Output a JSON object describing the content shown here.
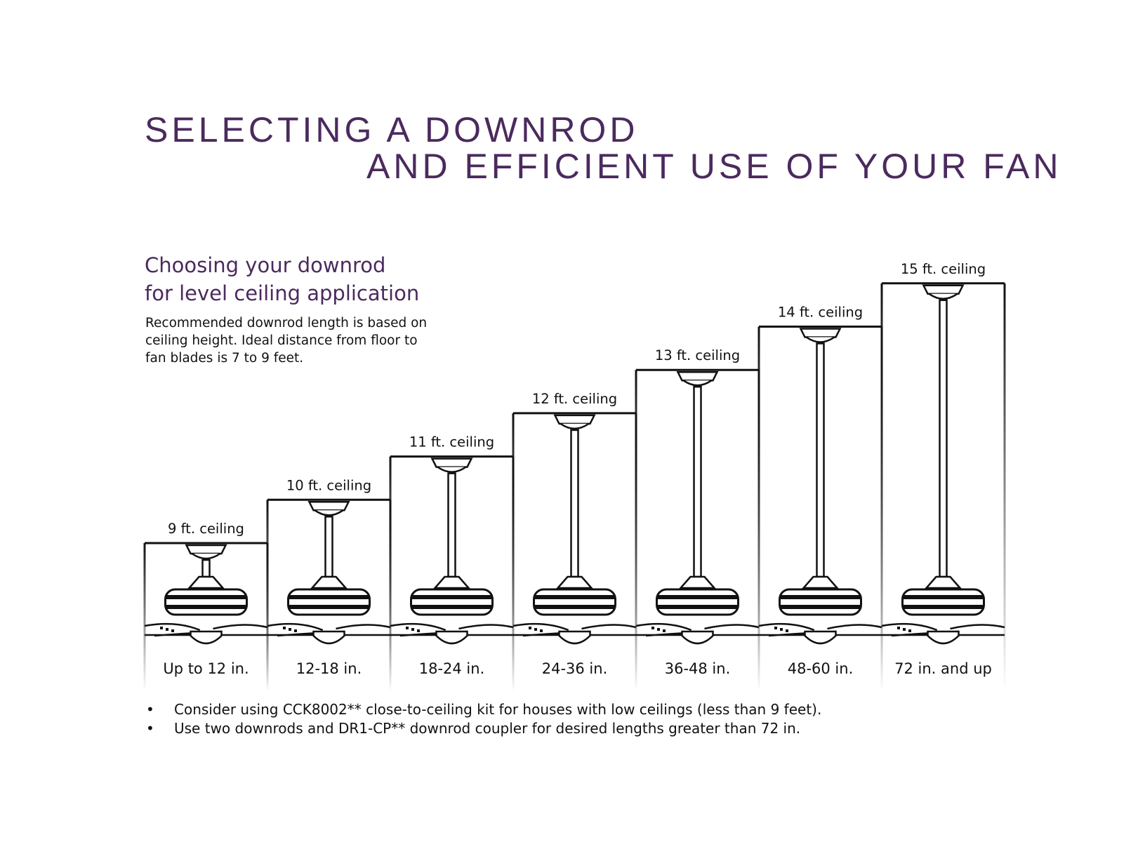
{
  "title": {
    "line1": "SELECTING A DOWNROD",
    "line2": "AND EFFICIENT USE OF YOUR FAN"
  },
  "subtitle": {
    "line1": "Choosing your downrod",
    "line2": "for level ceiling application"
  },
  "description": [
    "Recommended downrod length is based on",
    "ceiling height.  Ideal distance from floor to",
    "fan blades is 7 to 9 feet."
  ],
  "ceilings": [
    {
      "label": "9 ft. ceiling",
      "downrod": "Up to 12 in."
    },
    {
      "label": "10 ft. ceiling",
      "downrod": "12-18 in."
    },
    {
      "label": "11 ft. ceiling",
      "downrod": "18-24 in."
    },
    {
      "label": "12 ft. ceiling",
      "downrod": "24-36 in."
    },
    {
      "label": "13 ft. ceiling",
      "downrod": "36-48 in."
    },
    {
      "label": "14 ft. ceiling",
      "downrod": "48-60 in."
    },
    {
      "label": "15 ft. ceiling",
      "downrod": "72 in. and up"
    }
  ],
  "notes": [
    "Consider using CCK8002** close-to-ceiling kit for houses with low ceilings (less than 9 feet).",
    "Use two downrods and DR1-CP** downrod coupler for desired lengths greater than 72 in."
  ]
}
